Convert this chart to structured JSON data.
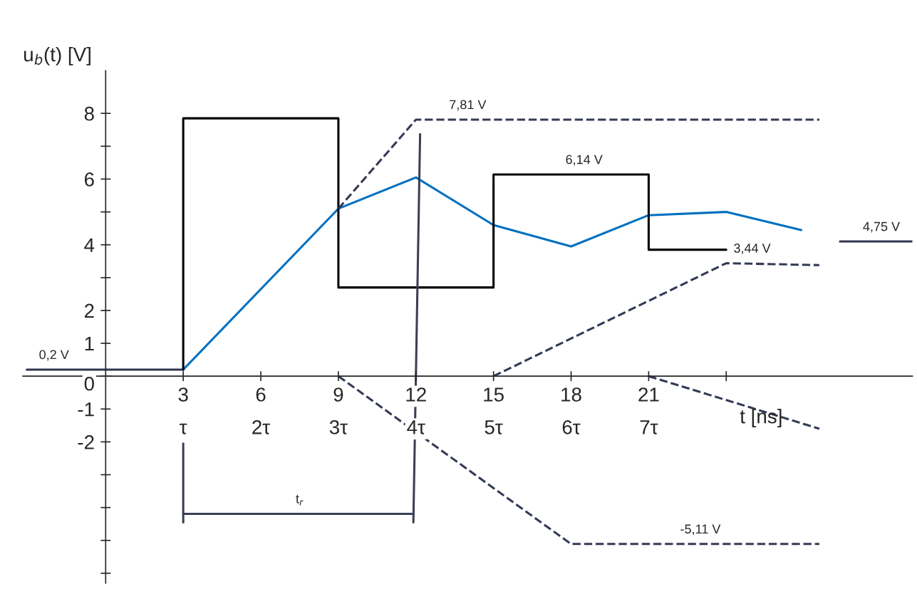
{
  "chart_data": {
    "type": "line",
    "xlabel": "t [ns]",
    "ylabel": "u$_{b}$(t) [V]",
    "xlim": [
      -3.2,
      31.2
    ],
    "ylim": [
      -6.3,
      9.3
    ],
    "xticks": [
      3,
      6,
      9,
      12,
      15,
      18,
      21,
      {
        "value": 24,
        "label": null
      }
    ],
    "x2lim": [
      -1.0667,
      10.4
    ],
    "x2ticks": [
      {
        "value": 1,
        "label": "τ"
      },
      {
        "value": 2,
        "label": "2τ"
      },
      {
        "value": 3,
        "label": "3τ"
      },
      {
        "value": 4,
        "label": "4τ"
      },
      {
        "value": 5,
        "label": "5τ"
      },
      {
        "value": 6,
        "label": "6τ"
      },
      {
        "value": 7,
        "label": "7τ"
      }
    ],
    "yticks": [
      {
        "value": -6,
        "label": null
      },
      {
        "value": -5,
        "label": null
      },
      {
        "value": -4,
        "label": null
      },
      {
        "value": -3,
        "label": null
      },
      -2,
      -1,
      0,
      1,
      2,
      {
        "value": 3,
        "label": null
      },
      4,
      {
        "value": 5,
        "label": null
      },
      6,
      {
        "value": 7,
        "label": null
      },
      8
    ],
    "grid": false,
    "legend": false,
    "marker": "none",
    "series": [
      {
        "color": "#2f3650",
        "line_style": "solid",
        "x": [
          -3.05,
          3
        ],
        "values": [
          0.2,
          0.2
        ]
      },
      {
        "color": "#0070c0",
        "line_style": "solid",
        "x": [
          3,
          9,
          12,
          15,
          18,
          21,
          24,
          26.9
        ],
        "values": [
          0.2,
          5.1,
          6.05,
          4.6,
          3.95,
          4.9,
          5.0,
          4.45
        ]
      },
      {
        "color": "#000000",
        "line_style": "solid",
        "x": [
          3,
          3,
          9,
          9,
          15,
          15,
          21,
          21,
          24
        ],
        "values": [
          0.2,
          7.85,
          7.85,
          2.7,
          2.7,
          6.14,
          6.14,
          3.85,
          3.85
        ]
      },
      {
        "color": "#333a55",
        "line_style": "dashed",
        "x": [
          9,
          12,
          27.6
        ],
        "values": [
          5.1,
          7.81,
          7.81
        ]
      },
      {
        "color": "#333a55",
        "line_style": "dashed",
        "x": [
          15,
          24,
          27.6
        ],
        "values": [
          0,
          3.44,
          3.38
        ]
      },
      {
        "color": "#333a55",
        "line_style": "dashed",
        "x": [
          9,
          18,
          27.6
        ],
        "values": [
          0,
          -5.11,
          -5.11
        ]
      },
      {
        "color": "#333a55",
        "line_style": "dashed",
        "x": [
          21,
          27.6
        ],
        "values": [
          0,
          -1.6
        ]
      },
      {
        "color": "#3a3f55",
        "line_style": "solid",
        "x": [
          11.9,
          12.16
        ],
        "values": [
          -4.45,
          7.37
        ]
      },
      {
        "color": "#3a3f55",
        "line_style": "solid",
        "x": [
          3,
          3
        ],
        "values": [
          -2.05,
          -4.45
        ]
      },
      {
        "color": "#3a3f55",
        "line_style": "solid",
        "x": [
          3,
          11.9
        ],
        "values": [
          -4.19,
          -4.19
        ]
      },
      {
        "color": "#2f3650",
        "line_style": "solid",
        "x": [
          28.4,
          31.2
        ],
        "values": [
          4.1,
          4.1
        ]
      }
    ],
    "annotations": [
      {
        "text": "0,2 V",
        "x": -2,
        "y": 0.2
      },
      {
        "text": "7,81 V",
        "x": 14,
        "y": 7.81
      },
      {
        "text": "6,14 V",
        "x": 18.5,
        "y": 6.14
      },
      {
        "text": "3,44 V",
        "x": 25,
        "y": 3.44
      },
      {
        "text": "-5,11 V",
        "x": 23,
        "y": -5.11
      },
      {
        "text": "4,75 V",
        "x": 30,
        "y": 4.1
      },
      {
        "text": "t$_{r}$",
        "x": 7.5,
        "y": -4.19
      }
    ]
  }
}
